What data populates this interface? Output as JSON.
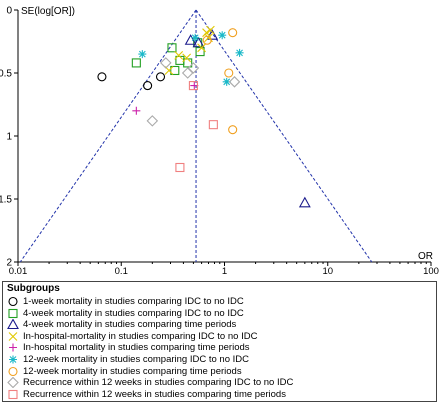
{
  "chart_data": {
    "type": "scatter",
    "title": "",
    "ylabel": "SE(log[OR])",
    "xlabel": "OR",
    "x_scale": "log",
    "xlim": [
      0.01,
      100
    ],
    "ylim": [
      2,
      0
    ],
    "y_inverted": true,
    "x_ticks": [
      "0.01",
      "0.1",
      "1",
      "10",
      "100"
    ],
    "y_ticks": [
      "0",
      "0.5",
      "1",
      "1.5",
      "2"
    ],
    "pooled_or": 0.53,
    "funnel": "95% pseudo-confidence limits (dashed)",
    "legend_title": "Subgroups",
    "legend_placement": "bottom",
    "series": [
      {
        "name": "1-week mortality in studies comparing IDC to no IDC",
        "marker": "circle",
        "color": "#000000",
        "points": [
          [
            0.065,
            0.53
          ],
          [
            0.18,
            0.6
          ],
          [
            0.24,
            0.53
          ]
        ]
      },
      {
        "name": "4-week mortality in studies comparing IDC to no IDC",
        "marker": "square",
        "color": "#22a022",
        "points": [
          [
            0.14,
            0.42
          ],
          [
            0.31,
            0.3
          ],
          [
            0.33,
            0.48
          ],
          [
            0.37,
            0.4
          ],
          [
            0.44,
            0.42
          ],
          [
            0.55,
            0.26
          ],
          [
            0.58,
            0.33
          ]
        ]
      },
      {
        "name": "4-week mortality in studies comparing time periods",
        "marker": "triangle",
        "color": "#1a1a8c",
        "points": [
          [
            0.47,
            0.24
          ],
          [
            0.56,
            0.26
          ],
          [
            0.76,
            0.2
          ],
          [
            6.0,
            1.53
          ]
        ]
      },
      {
        "name": "In-hospital-mortality in studies comparing IDC to no IDC",
        "marker": "x",
        "color": "#e0c800",
        "points": [
          [
            0.29,
            0.48
          ],
          [
            0.36,
            0.36
          ],
          [
            0.43,
            0.38
          ],
          [
            0.6,
            0.3
          ],
          [
            0.67,
            0.18
          ],
          [
            0.7,
            0.22
          ],
          [
            0.73,
            0.16
          ]
        ]
      },
      {
        "name": "In-hospital mortality in studies comparing time periods",
        "marker": "plus",
        "color": "#cc22aa",
        "points": [
          [
            0.14,
            0.8
          ],
          [
            0.51,
            0.6
          ]
        ]
      },
      {
        "name": "12-week mortality in studies comparing IDC to no IDC",
        "marker": "asterisk",
        "color": "#1ab8c8",
        "points": [
          [
            0.16,
            0.35
          ],
          [
            0.52,
            0.22
          ],
          [
            0.95,
            0.2
          ],
          [
            1.4,
            0.34
          ],
          [
            1.05,
            0.57
          ]
        ]
      },
      {
        "name": "12-week mortality in studies comparing time periods",
        "marker": "circle",
        "color": "#f0a020",
        "points": [
          [
            0.68,
            0.24
          ],
          [
            1.1,
            0.5
          ],
          [
            1.2,
            0.18
          ],
          [
            1.2,
            0.95
          ]
        ]
      },
      {
        "name": "Recurrence within 12 weeks in studies comparing IDC to no IDC",
        "marker": "diamond",
        "color": "#aaaaaa",
        "points": [
          [
            0.27,
            0.42
          ],
          [
            0.44,
            0.5
          ],
          [
            0.5,
            0.46
          ],
          [
            1.25,
            0.57
          ],
          [
            0.2,
            0.88
          ]
        ]
      },
      {
        "name": "Recurrence within 12 weeks in studies comparing time periods",
        "marker": "square",
        "color": "#f08080",
        "points": [
          [
            0.5,
            0.6
          ],
          [
            0.37,
            1.25
          ],
          [
            0.78,
            0.91
          ]
        ]
      }
    ]
  }
}
